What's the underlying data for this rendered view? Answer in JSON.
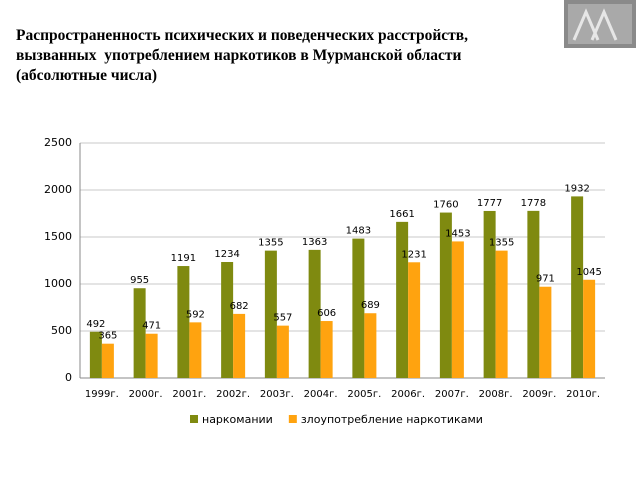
{
  "chart_data": {
    "type": "bar",
    "title": [
      "Распространенность психических и поведенческих расстройств,",
      "вызванных  употреблением наркотиков в Мурманской области",
      "(абсолютные числа)"
    ],
    "categories": [
      "1999г.",
      "2000г.",
      "2001г.",
      "2002г.",
      "2003г.",
      "2004г.",
      "2005г.",
      "2006г.",
      "2007г.",
      "2008г.",
      "2009г.",
      "2010г."
    ],
    "series": [
      {
        "name": "наркомании",
        "color": "#7f8a10",
        "values": [
          492,
          955,
          1191,
          1234,
          1355,
          1363,
          1483,
          1661,
          1760,
          1777,
          1778,
          1932
        ]
      },
      {
        "name": "злоупотребление наркотиками",
        "color": "#ffa30f",
        "values": [
          365,
          471,
          592,
          682,
          557,
          606,
          689,
          1231,
          1453,
          1355,
          971,
          1045
        ]
      }
    ],
    "ylim": [
      0,
      2500
    ],
    "yticks": [
      0,
      500,
      1000,
      1500,
      2000,
      2500
    ],
    "grid": true,
    "legend": "bottom"
  }
}
